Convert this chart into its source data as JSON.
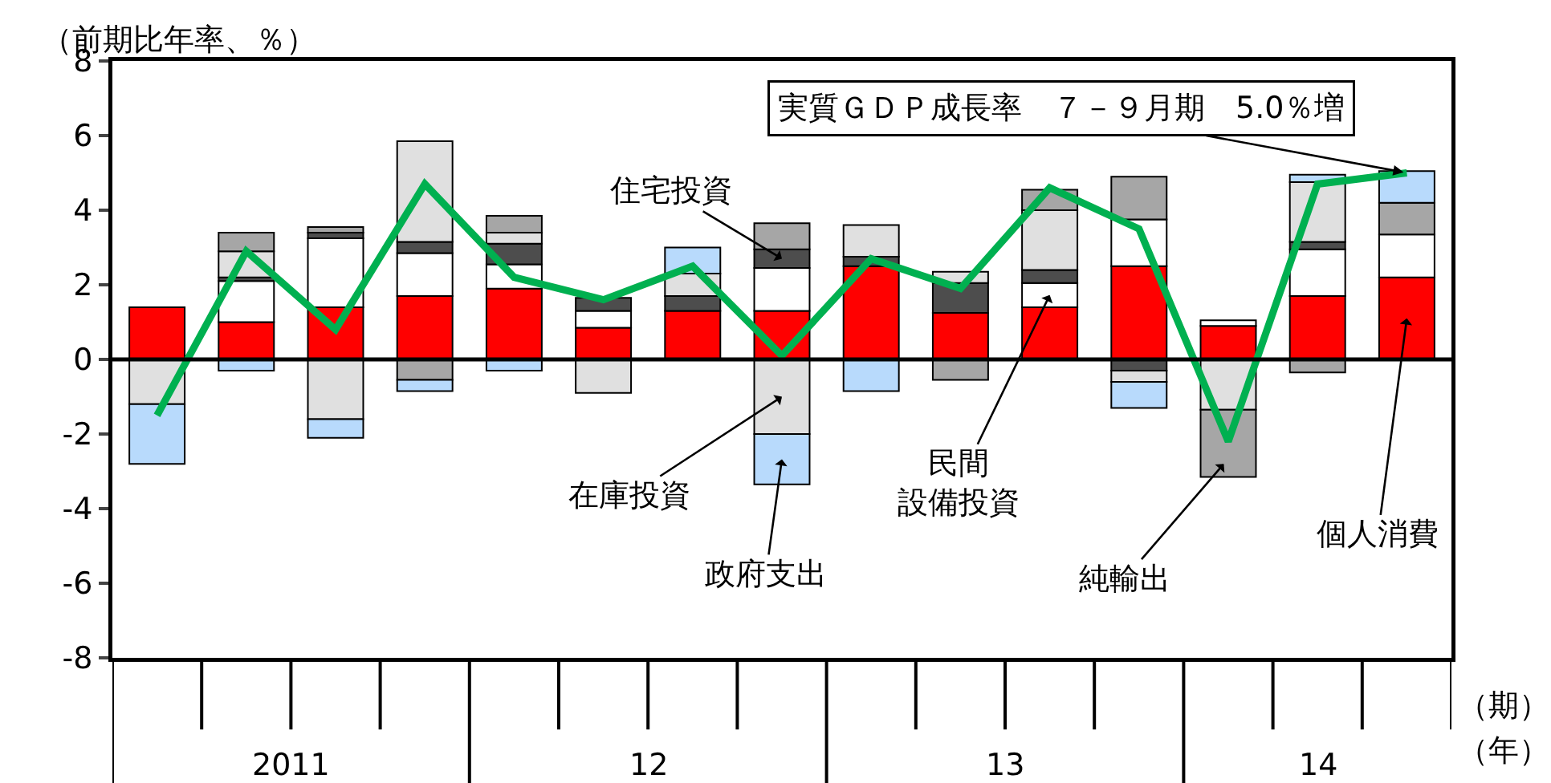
{
  "chart_data": {
    "type": "bar",
    "stacked": true,
    "ylabel": "（前期比年率、％）",
    "categories": [
      null,
      null,
      null,
      null,
      null,
      null,
      null,
      null,
      null,
      null,
      null,
      null,
      null,
      null,
      null
    ],
    "series": [
      {
        "name": "個人消費",
        "color": "#ff0000",
        "values": [
          1.4,
          1.0,
          1.4,
          1.7,
          1.9,
          0.85,
          1.3,
          1.3,
          2.5,
          1.25,
          1.4,
          2.5,
          0.9,
          1.7,
          2.2
        ]
      },
      {
        "name": "民間設備投資",
        "color": "#ffffff",
        "values": [
          null,
          1.1,
          1.85,
          1.15,
          0.65,
          0.45,
          null,
          1.15,
          null,
          null,
          0.65,
          1.25,
          0.15,
          1.25,
          1.15
        ]
      },
      {
        "name": "住宅投資",
        "color": "#4d4d4d",
        "values": [
          null,
          0.1,
          0.15,
          0.3,
          0.55,
          0.35,
          0.4,
          0.5,
          0.25,
          0.8,
          0.35,
          -0.3,
          null,
          0.2,
          null
        ]
      },
      {
        "name": "在庫投資",
        "color": "#e0e0e0",
        "values": [
          -1.2,
          0.7,
          -1.6,
          2.7,
          0.3,
          -0.9,
          0.6,
          -2.0,
          0.85,
          0.3,
          1.6,
          -0.3,
          -1.35,
          1.6,
          null
        ]
      },
      {
        "name": "純輸出",
        "color": "#a6a6a6",
        "values": [
          null,
          0.5,
          0.15,
          -0.55,
          0.45,
          null,
          null,
          0.7,
          null,
          -0.55,
          0.55,
          1.15,
          -1.8,
          -0.35,
          0.85
        ]
      },
      {
        "name": "政府支出",
        "color": "#b8dafc",
        "values": [
          -1.6,
          -0.3,
          -0.5,
          -0.3,
          -0.3,
          null,
          0.7,
          -1.35,
          -0.85,
          null,
          null,
          -0.7,
          null,
          0.2,
          0.85
        ]
      },
      {
        "name": "実質ＧＤＰ成長率　７－９月期　5.0％増",
        "type": "line",
        "color": "#00b050",
        "values": [
          -1.5,
          2.9,
          0.8,
          4.7,
          2.2,
          1.6,
          2.5,
          0.1,
          2.7,
          1.9,
          4.6,
          3.5,
          -2.2,
          4.7,
          5.0
        ]
      }
    ],
    "ref_lines": [
      {
        "axis": "y",
        "value": 0
      }
    ],
    "ylim": [
      -8,
      8
    ],
    "yticks": [
      -8,
      -6,
      -4,
      -2,
      0,
      2,
      4,
      6,
      8
    ],
    "grid": false,
    "legend": false,
    "marker": "none",
    "line_style": "solid",
    "annotations": [
      "2011",
      "12",
      "13",
      "14",
      "（期）",
      "（年）"
    ]
  }
}
